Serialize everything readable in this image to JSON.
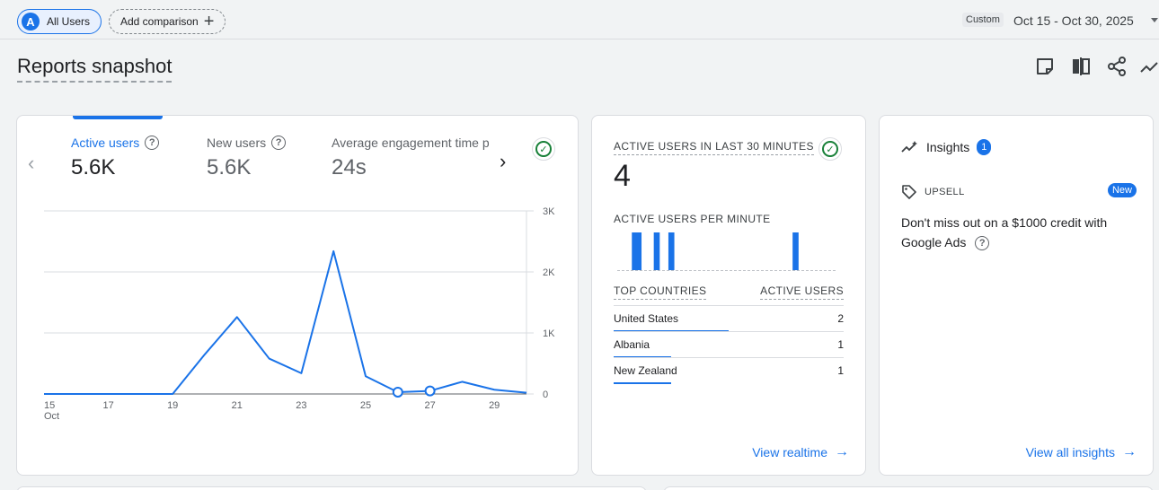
{
  "topbar": {
    "segment_avatar": "A",
    "segment_label": "All Users",
    "compare_label": "Add comparison",
    "compare_plus": "+",
    "date_mode": "Custom",
    "date_range": "Oct 15 - Oct 30, 2025"
  },
  "title": "Reports snapshot",
  "main_card": {
    "metrics": [
      {
        "label": "Active users",
        "value": "5.6K"
      },
      {
        "label": "New users",
        "value": "5.6K"
      },
      {
        "label": "Average engagement time p",
        "value": "24s"
      }
    ],
    "nav_prev": "‹",
    "nav_next": "›"
  },
  "chart_data": {
    "type": "line",
    "series": [
      {
        "name": "Active users",
        "x": [
          15,
          16,
          17,
          18,
          19,
          20,
          21,
          22,
          23,
          24,
          25,
          26,
          27,
          28,
          29,
          30
        ],
        "values": [
          0,
          0,
          0,
          0,
          0,
          650,
          1260,
          580,
          340,
          2340,
          290,
          30,
          50,
          200,
          70,
          20
        ]
      }
    ],
    "xticks": [
      "15",
      "17",
      "19",
      "21",
      "23",
      "25",
      "27",
      "29"
    ],
    "xtick_values": [
      15,
      17,
      19,
      21,
      23,
      25,
      27,
      29
    ],
    "x_sub_label": "Oct",
    "yticks": [
      "0",
      "1K",
      "2K",
      "3K"
    ],
    "ytick_values": [
      0,
      1000,
      2000,
      3000
    ],
    "ylim": [
      0,
      3000
    ],
    "xlim": [
      15,
      30
    ],
    "marked_points": [
      26,
      27
    ],
    "color": "#1a73e8",
    "grid": true
  },
  "realtime": {
    "heading": "ACTIVE USERS IN LAST 30 MINUTES",
    "value": "4",
    "per_minute_heading": "ACTIVE USERS PER MINUTE",
    "per_minute": [
      0,
      0,
      1,
      1,
      0,
      1,
      0,
      1,
      0,
      0,
      0,
      0,
      0,
      0,
      0,
      0,
      0,
      0,
      0,
      0,
      0,
      0,
      0,
      0,
      1,
      0,
      0,
      0,
      0,
      0
    ],
    "col_country": "TOP COUNTRIES",
    "col_users": "ACTIVE USERS",
    "rows": [
      {
        "country": "United States",
        "users": "2",
        "share": 0.5
      },
      {
        "country": "Albania",
        "users": "1",
        "share": 0.25
      },
      {
        "country": "New Zealand",
        "users": "1",
        "share": 0.25
      }
    ],
    "link": "View realtime"
  },
  "insights": {
    "title": "Insights",
    "count": "1",
    "upsell_label": "UPSELL",
    "new_badge": "New",
    "text": "Don't miss out on a $1000 credit with Google Ads",
    "link": "View all insights"
  },
  "colors": {
    "accent": "#1a73e8",
    "success": "#188038"
  }
}
